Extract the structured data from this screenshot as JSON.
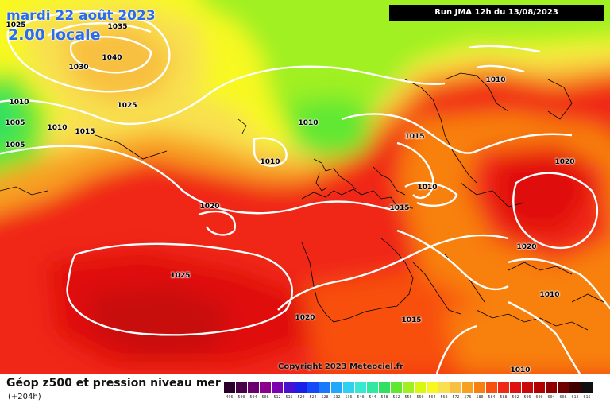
{
  "header": {
    "date_line": "mardi 22 août 2023",
    "time_line": "2.00 locale",
    "run_info": "Run JMA 12h du 13/08/2023"
  },
  "map": {
    "copyright": "Copyright 2023 Meteociel.fr",
    "isobars": [
      "1025",
      "1035",
      "1040",
      "1030",
      "1010",
      "1005",
      "1005",
      "1010",
      "1015",
      "1025",
      "1010",
      "1010",
      "1015",
      "1010",
      "1020",
      "1020",
      "1015",
      "1020",
      "1025",
      "1020",
      "1015",
      "1010",
      "1010",
      "1010"
    ]
  },
  "legend": {
    "title": "Géop z500 et pression niveau mer",
    "lead_time": "(+204h)",
    "scale": [
      {
        "label": "496",
        "color": "#2a0028"
      },
      {
        "label": "500",
        "color": "#4a0048"
      },
      {
        "label": "504",
        "color": "#6a0070"
      },
      {
        "label": "508",
        "color": "#8c008e"
      },
      {
        "label": "512",
        "color": "#7a00b0"
      },
      {
        "label": "516",
        "color": "#4a10d0"
      },
      {
        "label": "520",
        "color": "#1a20e8"
      },
      {
        "label": "524",
        "color": "#1448f8"
      },
      {
        "label": "528",
        "color": "#1a78fa"
      },
      {
        "label": "532",
        "color": "#20a8fa"
      },
      {
        "label": "536",
        "color": "#30d0f0"
      },
      {
        "label": "540",
        "color": "#38e8d0"
      },
      {
        "label": "544",
        "color": "#30e8a0"
      },
      {
        "label": "548",
        "color": "#30e060"
      },
      {
        "label": "552",
        "color": "#60e830"
      },
      {
        "label": "556",
        "color": "#a0f020"
      },
      {
        "label": "560",
        "color": "#d8f810"
      },
      {
        "label": "564",
        "color": "#f8f820"
      },
      {
        "label": "568",
        "color": "#f8e050"
      },
      {
        "label": "572",
        "color": "#f8c040"
      },
      {
        "label": "576",
        "color": "#f8a020"
      },
      {
        "label": "580",
        "color": "#f88010"
      },
      {
        "label": "584",
        "color": "#f85010"
      },
      {
        "label": "588",
        "color": "#f02818"
      },
      {
        "label": "592",
        "color": "#e01010"
      },
      {
        "label": "596",
        "color": "#c80808"
      },
      {
        "label": "600",
        "color": "#b00000"
      },
      {
        "label": "604",
        "color": "#900000"
      },
      {
        "label": "608",
        "color": "#700000"
      },
      {
        "label": "612",
        "color": "#400000"
      },
      {
        "label": "616",
        "color": "#101010"
      }
    ]
  }
}
